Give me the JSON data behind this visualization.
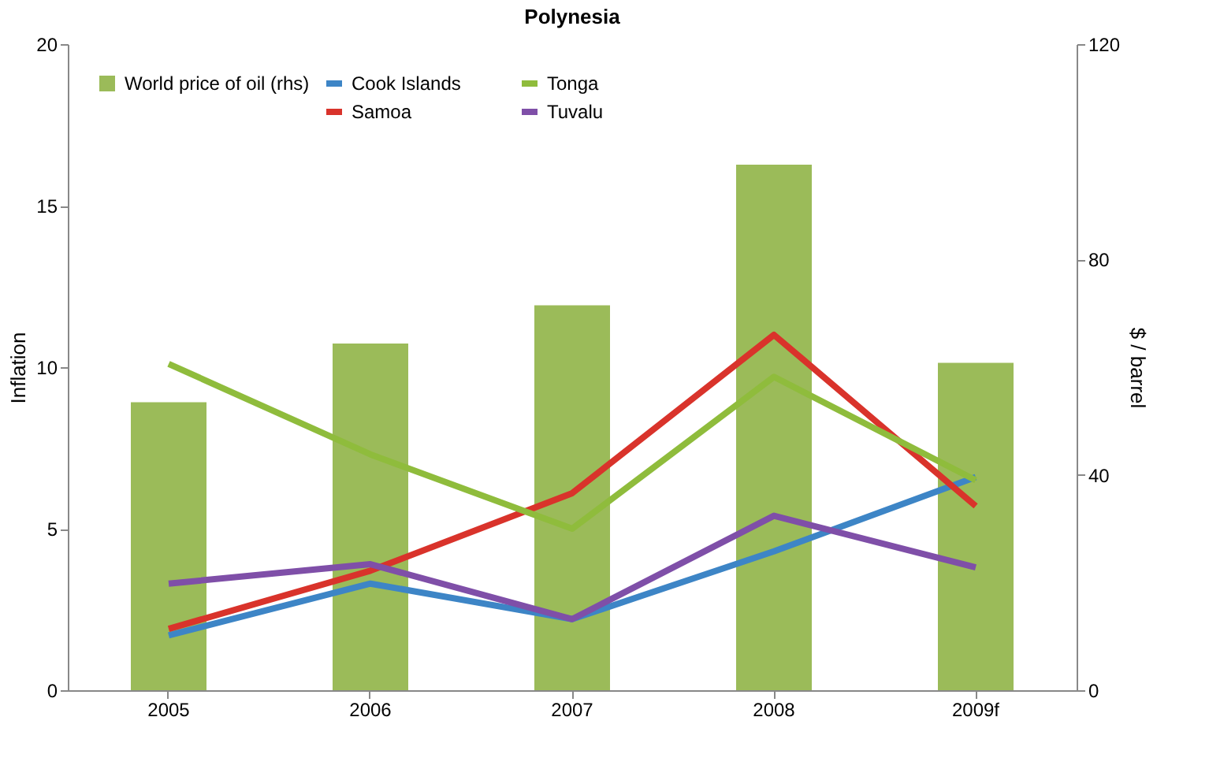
{
  "chart_data": {
    "type": "line",
    "title": "Polynesia",
    "ylabel": "Inflation",
    "y2label": "$ / barrel",
    "categories": [
      "2005",
      "2006",
      "2007",
      "2008",
      "2009f"
    ],
    "series": [
      {
        "name": "World price of oil (rhs)",
        "type": "bar",
        "axis": "y2",
        "color": "#9bbb59",
        "values": [
          53.5,
          64.4,
          71.5,
          97.6,
          60.8
        ]
      },
      {
        "name": "Cook Islands",
        "color": "#3d85c6",
        "values": [
          1.7,
          3.3,
          2.2,
          4.3,
          6.6
        ]
      },
      {
        "name": "Samoa",
        "color": "#d9332b",
        "values": [
          1.9,
          3.7,
          6.1,
          11.0,
          5.7
        ]
      },
      {
        "name": "Tonga",
        "color": "#8fbc3c",
        "values": [
          10.1,
          7.3,
          5.0,
          9.7,
          6.5
        ]
      },
      {
        "name": "Tuvalu",
        "color": "#7f4fa8",
        "values": [
          3.3,
          3.9,
          2.2,
          5.4,
          3.8
        ]
      }
    ],
    "ylim": [
      0,
      20
    ],
    "yticks": [
      0,
      5,
      10,
      15,
      20
    ],
    "y2lim": [
      0,
      120
    ],
    "y2ticks": [
      0,
      40,
      80,
      120
    ],
    "grid": false,
    "legend": "top left"
  }
}
